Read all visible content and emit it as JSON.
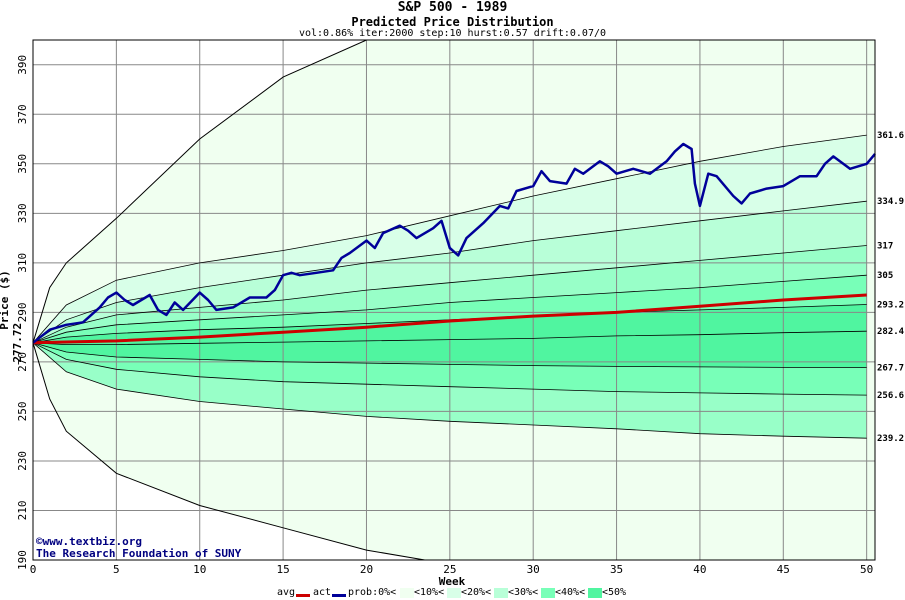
{
  "header": {
    "title": "S&P 500 - 1989",
    "subtitle": "Predicted Price Distribution",
    "params": "vol:0.86% iter:2000 step:10 hurst:0.57 drift:0.07/0"
  },
  "credits": {
    "line1": "©www.textbiz.org",
    "line2": "The Research Foundation of SUNY"
  },
  "colors": {
    "background": "#ffffff",
    "band_outer": "#f0fff0",
    "band_10": "#d8ffe8",
    "band_20": "#b8ffd8",
    "band_30": "#98ffc8",
    "band_40": "#78ffb8",
    "band_50": "#50f5a0",
    "avg_line": "#cc0000",
    "act_line": "#000099",
    "grid": "#888888"
  },
  "legend": {
    "avg": "avg",
    "act": "act",
    "prob": "prob:0%<",
    "b10": "<10%<",
    "b20": "<20%<",
    "b30": "<30%<",
    "b40": "<40%<",
    "b50": "<50%"
  },
  "chart_data": {
    "type": "area",
    "xlabel": "Week",
    "ylabel": "Price ($)",
    "xlim": [
      0,
      50.5
    ],
    "ylim": [
      190,
      400
    ],
    "x_ticks": [
      0,
      5,
      10,
      15,
      20,
      25,
      30,
      35,
      40,
      45,
      50
    ],
    "y_ticks": [
      190,
      210,
      230,
      250,
      270,
      290,
      310,
      330,
      350,
      370,
      390
    ],
    "start_price_label": "277.72",
    "start_price": 277.72,
    "envelope": {
      "x": [
        0,
        1,
        2,
        5,
        10,
        15,
        20,
        23.5
      ],
      "upper": [
        277.72,
        300,
        310,
        328,
        360,
        385,
        400,
        400
      ],
      "lower": [
        277.72,
        255,
        242,
        225,
        212,
        203,
        194,
        190
      ]
    },
    "quantile_x": [
      0,
      2,
      5,
      10,
      15,
      20,
      25,
      30,
      35,
      40,
      45,
      50
    ],
    "quantiles": [
      {
        "label": "361.6",
        "band": "0%",
        "values": [
          277.72,
          293,
          303,
          310,
          315,
          321,
          329,
          337,
          344,
          351,
          357,
          361.6
        ]
      },
      {
        "label": "334.9",
        "band": "10%",
        "values": [
          277.72,
          287,
          294,
          300,
          305,
          310,
          314,
          319,
          323,
          327,
          331,
          334.9
        ]
      },
      {
        "label": "317",
        "band": "20%",
        "values": [
          277.72,
          284,
          289,
          292,
          295,
          299,
          302,
          305,
          308,
          311,
          314,
          317
        ]
      },
      {
        "label": "305",
        "band": "30%",
        "values": [
          277.72,
          282,
          285,
          287,
          289,
          291,
          294,
          296,
          298,
          300,
          302.5,
          305
        ]
      },
      {
        "label": "293.2",
        "band": "40%",
        "values": [
          277.72,
          280,
          281.5,
          283,
          284,
          285.5,
          287,
          288.5,
          290,
          291,
          292,
          293.2
        ]
      },
      {
        "label": "282.4",
        "band": "50%",
        "values": [
          277.72,
          277,
          277,
          277.5,
          278,
          278.5,
          279,
          279.5,
          280.5,
          281,
          281.8,
          282.4
        ]
      },
      {
        "label": "267.7",
        "band": "40%",
        "values": [
          277.72,
          274,
          272,
          271,
          270,
          269.5,
          269,
          268.5,
          268.2,
          268,
          267.8,
          267.7
        ]
      },
      {
        "label": "256.6",
        "band": "30%",
        "values": [
          277.72,
          271,
          267,
          264,
          262,
          261,
          260,
          259,
          258,
          257.5,
          257,
          256.6
        ]
      },
      {
        "label": "239.2",
        "band": "20%",
        "values": [
          277.72,
          266,
          259,
          254,
          251,
          248,
          246,
          244.5,
          243,
          241,
          240,
          239.2
        ]
      }
    ],
    "avg": {
      "x": [
        0,
        5,
        10,
        15,
        20,
        25,
        30,
        35,
        40,
        45,
        50
      ],
      "values": [
        277.72,
        278.5,
        280,
        282,
        284,
        286.5,
        288.5,
        290,
        292.5,
        295,
        297
      ]
    },
    "actual": {
      "x": [
        0,
        1,
        2,
        3,
        4,
        4.5,
        5,
        5.5,
        6,
        7,
        7.5,
        8,
        8.5,
        9,
        10,
        10.5,
        11,
        12,
        13,
        14,
        14.5,
        15,
        15.5,
        16,
        17,
        18,
        18.5,
        19,
        20,
        20.5,
        21,
        22,
        22.5,
        23,
        24,
        24.5,
        25,
        25.5,
        26,
        27,
        28,
        28.5,
        29,
        30,
        30.5,
        31,
        32,
        32.5,
        33,
        34,
        34.5,
        35,
        36,
        37,
        38,
        38.5,
        39,
        39.5,
        39.7,
        40,
        40.5,
        41,
        42,
        42.5,
        43,
        44,
        45,
        46,
        47,
        47.5,
        48,
        49,
        50,
        50.5
      ],
      "values": [
        277.72,
        283,
        285,
        286,
        292,
        296,
        298,
        295,
        293,
        297,
        291,
        289,
        294,
        291,
        298,
        295,
        291,
        292,
        296,
        296,
        299,
        305,
        306,
        305,
        306,
        307,
        312,
        314,
        319,
        316,
        322,
        325,
        323,
        320,
        324,
        327,
        316,
        313,
        320,
        326,
        333,
        332,
        339,
        341,
        347,
        343,
        342,
        348,
        346,
        351,
        349,
        346,
        348,
        346,
        351,
        355,
        358,
        356,
        342,
        333,
        346,
        345,
        337,
        334,
        338,
        340,
        341,
        345,
        345,
        350,
        353,
        348,
        350,
        354
      ]
    }
  }
}
